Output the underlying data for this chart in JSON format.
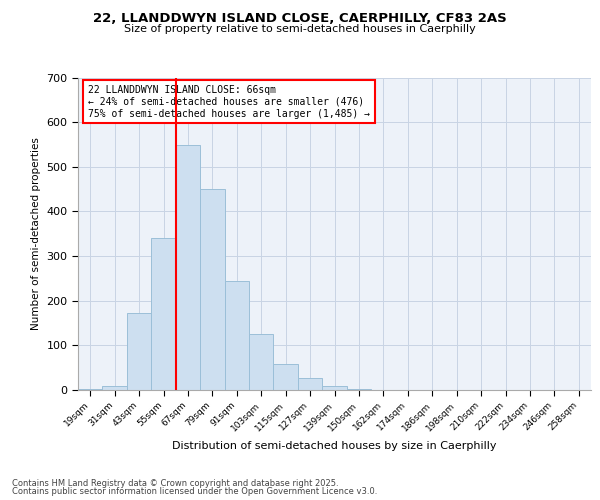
{
  "title_line1": "22, LLANDDWYN ISLAND CLOSE, CAERPHILLY, CF83 2AS",
  "title_line2": "Size of property relative to semi-detached houses in Caerphilly",
  "xlabel": "Distribution of semi-detached houses by size in Caerphilly",
  "ylabel": "Number of semi-detached properties",
  "bar_labels": [
    "19sqm",
    "31sqm",
    "43sqm",
    "55sqm",
    "67sqm",
    "79sqm",
    "91sqm",
    "103sqm",
    "115sqm",
    "127sqm",
    "139sqm",
    "150sqm",
    "162sqm",
    "174sqm",
    "186sqm",
    "198sqm",
    "210sqm",
    "222sqm",
    "234sqm",
    "246sqm",
    "258sqm"
  ],
  "bar_values": [
    3,
    10,
    173,
    340,
    548,
    450,
    245,
    125,
    58,
    28,
    10,
    3,
    1,
    0,
    0,
    0,
    0,
    0,
    0,
    0,
    0
  ],
  "bar_color": "#cddff0",
  "bar_edge_color": "#9bbfd8",
  "red_line_index": 4,
  "ylim": [
    0,
    700
  ],
  "yticks": [
    0,
    100,
    200,
    300,
    400,
    500,
    600,
    700
  ],
  "annotation_title": "22 LLANDDWYN ISLAND CLOSE: 66sqm",
  "annotation_line1": "← 24% of semi-detached houses are smaller (476)",
  "annotation_line2": "75% of semi-detached houses are larger (1,485) →",
  "footer_line1": "Contains HM Land Registry data © Crown copyright and database right 2025.",
  "footer_line2": "Contains public sector information licensed under the Open Government Licence v3.0.",
  "background_color": "#edf2f9",
  "grid_color": "#c8d4e4"
}
